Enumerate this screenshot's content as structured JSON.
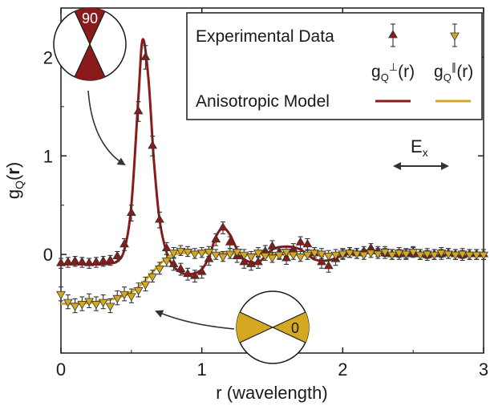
{
  "chart_data": {
    "type": "scatter",
    "xlabel": "r (wavelength)",
    "ylabel": "gQ(r)",
    "xlim": [
      0,
      3
    ],
    "ylim": [
      -1,
      2.5
    ],
    "x_ticks": [
      "0",
      "1",
      "2",
      "3"
    ],
    "y_ticks": [
      "0",
      "1",
      "2"
    ],
    "legend": {
      "title_data": "Experimental Data",
      "title_model": "Anisotropic Model",
      "col_perp": "gQ⊥(r)",
      "col_par": "gQ∥(r)",
      "placement": "top-right"
    },
    "annotations": {
      "field": "Ex",
      "angle_perp": "90",
      "angle_par": "0"
    },
    "series": [
      {
        "name": "gQ⊥(r)",
        "kind": "experimental",
        "color": "#8b1a1a",
        "marker": "triangle-up",
        "x": [
          0.0,
          0.05,
          0.1,
          0.15,
          0.2,
          0.25,
          0.3,
          0.35,
          0.4,
          0.45,
          0.5,
          0.55,
          0.6,
          0.65,
          0.7,
          0.75,
          0.8,
          0.85,
          0.9,
          0.95,
          1.0,
          1.05,
          1.1,
          1.15,
          1.2,
          1.25,
          1.3,
          1.35,
          1.4,
          1.45,
          1.5,
          1.55,
          1.6,
          1.65,
          1.7,
          1.75,
          1.8,
          1.85,
          1.9,
          1.95,
          2.0,
          2.05,
          2.1,
          2.15,
          2.2,
          2.25,
          2.3,
          2.35,
          2.4,
          2.45,
          2.5,
          2.55,
          2.6,
          2.65,
          2.7,
          2.75,
          2.8,
          2.85,
          2.9,
          2.95,
          3.0
        ],
        "y": [
          -0.09,
          -0.08,
          -0.07,
          -0.08,
          -0.09,
          -0.08,
          -0.07,
          -0.06,
          -0.02,
          0.1,
          0.42,
          1.45,
          2.0,
          1.1,
          0.35,
          0.06,
          -0.1,
          -0.15,
          -0.2,
          -0.22,
          -0.18,
          -0.05,
          0.15,
          0.27,
          0.12,
          -0.02,
          -0.08,
          -0.1,
          -0.08,
          0.03,
          0.08,
          0.02,
          -0.04,
          0.05,
          0.12,
          0.1,
          0.01,
          -0.08,
          -0.12,
          -0.05,
          0.0,
          0.02,
          0.01,
          0.03,
          0.06,
          0.03,
          0.01,
          0.0,
          0.0,
          0.0,
          0.02,
          0.0,
          -0.01,
          0.0,
          0.0,
          0.01,
          0.0,
          -0.01,
          0.0,
          0.0,
          0.0
        ],
        "err": [
          0.05,
          0.05,
          0.05,
          0.05,
          0.05,
          0.05,
          0.05,
          0.05,
          0.05,
          0.06,
          0.08,
          0.1,
          0.12,
          0.1,
          0.08,
          0.06,
          0.06,
          0.06,
          0.06,
          0.06,
          0.06,
          0.06,
          0.06,
          0.06,
          0.06,
          0.06,
          0.06,
          0.06,
          0.06,
          0.06,
          0.06,
          0.06,
          0.06,
          0.06,
          0.06,
          0.06,
          0.06,
          0.06,
          0.06,
          0.06,
          0.05,
          0.05,
          0.05,
          0.05,
          0.05,
          0.05,
          0.05,
          0.05,
          0.05,
          0.05,
          0.05,
          0.05,
          0.05,
          0.05,
          0.05,
          0.05,
          0.05,
          0.05,
          0.05,
          0.05,
          0.05
        ]
      },
      {
        "name": "gQ∥(r)",
        "kind": "experimental",
        "color": "#d4a820",
        "marker": "triangle-down",
        "x": [
          0.0,
          0.05,
          0.1,
          0.15,
          0.2,
          0.25,
          0.3,
          0.35,
          0.4,
          0.45,
          0.5,
          0.55,
          0.6,
          0.65,
          0.7,
          0.75,
          0.8,
          0.85,
          0.9,
          0.95,
          1.0,
          1.05,
          1.1,
          1.15,
          1.2,
          1.25,
          1.3,
          1.35,
          1.4,
          1.45,
          1.5,
          1.55,
          1.6,
          1.65,
          1.7,
          1.75,
          1.8,
          1.85,
          1.9,
          1.95,
          2.0,
          2.05,
          2.1,
          2.15,
          2.2,
          2.25,
          2.3,
          2.35,
          2.4,
          2.45,
          2.5,
          2.55,
          2.6,
          2.65,
          2.7,
          2.75,
          2.8,
          2.85,
          2.9,
          2.95,
          3.0
        ],
        "y": [
          -0.4,
          -0.48,
          -0.52,
          -0.5,
          -0.47,
          -0.5,
          -0.48,
          -0.52,
          -0.44,
          -0.4,
          -0.42,
          -0.36,
          -0.3,
          -0.22,
          -0.14,
          -0.06,
          0.02,
          0.04,
          0.03,
          0.01,
          0.02,
          0.03,
          0.0,
          -0.02,
          0.01,
          0.03,
          0.0,
          -0.02,
          0.02,
          -0.01,
          -0.03,
          0.0,
          0.03,
          0.0,
          -0.02,
          0.0,
          0.02,
          0.01,
          -0.01,
          0.0,
          0.01,
          0.02,
          0.01,
          0.0,
          0.02,
          0.01,
          0.03,
          0.0,
          0.02,
          0.01,
          0.03,
          0.0,
          0.01,
          0.0,
          0.02,
          0.01,
          0.0,
          0.01,
          0.0,
          0.0,
          0.0
        ],
        "err": [
          0.07,
          0.07,
          0.07,
          0.07,
          0.07,
          0.07,
          0.07,
          0.07,
          0.07,
          0.07,
          0.07,
          0.07,
          0.07,
          0.06,
          0.06,
          0.06,
          0.05,
          0.05,
          0.05,
          0.05,
          0.05,
          0.05,
          0.05,
          0.05,
          0.05,
          0.05,
          0.05,
          0.05,
          0.05,
          0.05,
          0.05,
          0.05,
          0.05,
          0.05,
          0.05,
          0.05,
          0.05,
          0.05,
          0.05,
          0.05,
          0.05,
          0.05,
          0.05,
          0.05,
          0.05,
          0.05,
          0.05,
          0.05,
          0.05,
          0.05,
          0.05,
          0.05,
          0.05,
          0.05,
          0.05,
          0.05,
          0.05,
          0.05,
          0.05,
          0.05,
          0.05
        ]
      },
      {
        "name": "Anisotropic Model gQ⊥(r)",
        "kind": "model",
        "color": "#8b1a1a",
        "x": [
          0.0,
          0.1,
          0.2,
          0.3,
          0.35,
          0.4,
          0.45,
          0.5,
          0.55,
          0.58,
          0.62,
          0.66,
          0.7,
          0.75,
          0.8,
          0.85,
          0.9,
          0.95,
          1.0,
          1.05,
          1.1,
          1.15,
          1.2,
          1.25,
          1.3,
          1.4,
          1.5,
          1.6,
          1.7,
          1.8,
          1.9,
          2.0,
          2.1,
          2.2,
          2.3,
          2.4,
          2.5,
          2.6,
          2.7,
          2.8,
          2.9,
          3.0
        ],
        "y": [
          -0.1,
          -0.1,
          -0.1,
          -0.1,
          -0.09,
          -0.07,
          0.05,
          0.5,
          1.6,
          2.18,
          1.8,
          0.95,
          0.35,
          0.02,
          -0.12,
          -0.18,
          -0.2,
          -0.19,
          -0.15,
          -0.03,
          0.18,
          0.27,
          0.2,
          0.05,
          -0.05,
          -0.08,
          0.05,
          0.08,
          0.05,
          -0.05,
          -0.06,
          -0.01,
          0.02,
          0.04,
          0.02,
          0.0,
          -0.01,
          -0.01,
          0.0,
          0.0,
          0.0,
          0.0
        ]
      },
      {
        "name": "Anisotropic Model gQ∥(r)",
        "kind": "model",
        "color": "#d4a820",
        "x": [
          0.0,
          0.1,
          0.2,
          0.3,
          0.4,
          0.5,
          0.55,
          0.6,
          0.65,
          0.7,
          0.75,
          0.8,
          0.9,
          1.0,
          1.2,
          1.4,
          1.6,
          1.8,
          2.0,
          2.2,
          2.4,
          2.6,
          2.8,
          3.0
        ],
        "y": [
          -0.5,
          -0.5,
          -0.49,
          -0.47,
          -0.44,
          -0.38,
          -0.33,
          -0.26,
          -0.18,
          -0.1,
          -0.04,
          0.0,
          0.02,
          0.02,
          0.01,
          0.0,
          0.0,
          0.0,
          0.01,
          0.02,
          0.01,
          0.0,
          0.0,
          0.0
        ]
      }
    ]
  }
}
